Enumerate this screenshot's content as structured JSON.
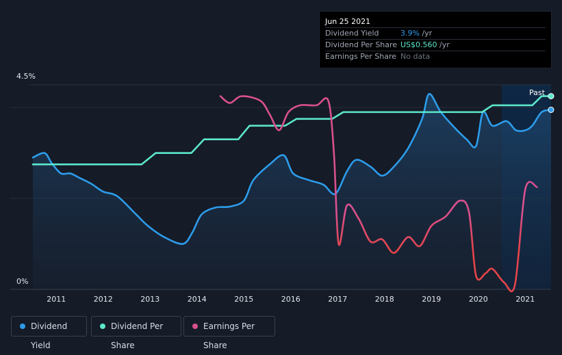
{
  "tooltip": {
    "date": "Jun 25 2021",
    "rows": [
      {
        "label": "Dividend Yield",
        "value": "3.9%",
        "unit": " /yr",
        "color": "#2d9cea"
      },
      {
        "label": "Dividend Per Share",
        "value": "US$0.560",
        "unit": " /yr",
        "color": "#5ce8cb"
      },
      {
        "label": "Earnings Per Share",
        "value": "No data",
        "unit": "",
        "color": "#6b7280"
      }
    ]
  },
  "past_label": "Past",
  "legend": [
    {
      "label": "Dividend Yield",
      "color": "#2d9cea"
    },
    {
      "label": "Dividend Per Share",
      "color": "#5ce8cb"
    },
    {
      "label": "Earnings Per Share",
      "color": "#d9508f"
    }
  ],
  "chart_data": {
    "type": "line",
    "ylim": [
      0,
      4.5
    ],
    "y_tick_labels": [
      "4.5%",
      "0%"
    ],
    "x_tick_labels": [
      "2011",
      "2012",
      "2013",
      "2014",
      "2015",
      "2016",
      "2017",
      "2018",
      "2019",
      "2020",
      "2021"
    ],
    "x_range": [
      2010.5,
      2021.55
    ],
    "series": [
      {
        "name": "Dividend Yield",
        "color": "#2d9cea",
        "points": [
          [
            2010.5,
            2.9
          ],
          [
            2010.75,
            3.0
          ],
          [
            2010.9,
            2.78
          ],
          [
            2011.1,
            2.55
          ],
          [
            2011.3,
            2.55
          ],
          [
            2011.5,
            2.45
          ],
          [
            2011.75,
            2.32
          ],
          [
            2012.0,
            2.15
          ],
          [
            2012.3,
            2.05
          ],
          [
            2012.7,
            1.65
          ],
          [
            2012.95,
            1.4
          ],
          [
            2013.3,
            1.15
          ],
          [
            2013.7,
            1.0
          ],
          [
            2013.9,
            1.25
          ],
          [
            2014.1,
            1.65
          ],
          [
            2014.4,
            1.8
          ],
          [
            2014.7,
            1.82
          ],
          [
            2015.0,
            1.95
          ],
          [
            2015.2,
            2.4
          ],
          [
            2015.55,
            2.75
          ],
          [
            2015.85,
            2.95
          ],
          [
            2016.05,
            2.55
          ],
          [
            2016.4,
            2.4
          ],
          [
            2016.7,
            2.3
          ],
          [
            2016.95,
            2.1
          ],
          [
            2017.2,
            2.6
          ],
          [
            2017.4,
            2.85
          ],
          [
            2017.7,
            2.7
          ],
          [
            2017.95,
            2.5
          ],
          [
            2018.2,
            2.7
          ],
          [
            2018.5,
            3.1
          ],
          [
            2018.8,
            3.75
          ],
          [
            2018.95,
            4.3
          ],
          [
            2019.2,
            3.9
          ],
          [
            2019.5,
            3.55
          ],
          [
            2019.75,
            3.3
          ],
          [
            2019.95,
            3.15
          ],
          [
            2020.1,
            3.9
          ],
          [
            2020.3,
            3.6
          ],
          [
            2020.6,
            3.7
          ],
          [
            2020.8,
            3.5
          ],
          [
            2021.0,
            3.5
          ],
          [
            2021.15,
            3.6
          ],
          [
            2021.35,
            3.9
          ],
          [
            2021.55,
            3.95
          ]
        ]
      },
      {
        "name": "Dividend Per Share",
        "color": "#5ce8cb",
        "points": [
          [
            2010.5,
            2.75
          ],
          [
            2012.82,
            2.75
          ],
          [
            2013.12,
            3.0
          ],
          [
            2013.88,
            3.0
          ],
          [
            2014.15,
            3.3
          ],
          [
            2014.88,
            3.3
          ],
          [
            2015.12,
            3.6
          ],
          [
            2015.88,
            3.6
          ],
          [
            2016.12,
            3.75
          ],
          [
            2016.88,
            3.75
          ],
          [
            2017.12,
            3.9
          ],
          [
            2020.08,
            3.9
          ],
          [
            2020.3,
            4.05
          ],
          [
            2021.15,
            4.05
          ],
          [
            2021.35,
            4.25
          ],
          [
            2021.55,
            4.25
          ]
        ]
      },
      {
        "name": "Earnings Per Share",
        "color": "#d9508f",
        "points": [
          [
            2014.5,
            4.25
          ],
          [
            2014.7,
            4.1
          ],
          [
            2014.95,
            4.25
          ],
          [
            2015.35,
            4.15
          ],
          [
            2015.55,
            3.85
          ],
          [
            2015.75,
            3.5
          ],
          [
            2015.95,
            3.9
          ],
          [
            2016.2,
            4.05
          ],
          [
            2016.55,
            4.05
          ],
          [
            2016.8,
            4.15
          ],
          [
            2016.92,
            3.0
          ],
          [
            2017.02,
            1.0
          ],
          [
            2017.2,
            1.85
          ],
          [
            2017.45,
            1.55
          ],
          [
            2017.7,
            1.05
          ],
          [
            2017.95,
            1.1
          ],
          [
            2018.2,
            0.8
          ],
          [
            2018.5,
            1.15
          ],
          [
            2018.75,
            0.95
          ],
          [
            2019.0,
            1.4
          ],
          [
            2019.3,
            1.6
          ],
          [
            2019.6,
            1.95
          ],
          [
            2019.8,
            1.7
          ],
          [
            2019.95,
            0.3
          ],
          [
            2020.15,
            0.35
          ],
          [
            2020.3,
            0.45
          ],
          [
            2020.55,
            0.15
          ],
          [
            2020.78,
            0.1
          ],
          [
            2021.0,
            2.2
          ],
          [
            2021.25,
            2.25
          ]
        ]
      }
    ],
    "markers": [
      {
        "series": "Dividend Per Share",
        "x": 2021.55,
        "y": 4.25
      },
      {
        "series": "Dividend Yield",
        "x": 2021.55,
        "y": 3.95
      }
    ],
    "shaded_region": {
      "from": 2020.5,
      "to": 2021.55,
      "label": "Past"
    },
    "grid": "horizontal",
    "legend_position": "bottom-left"
  }
}
